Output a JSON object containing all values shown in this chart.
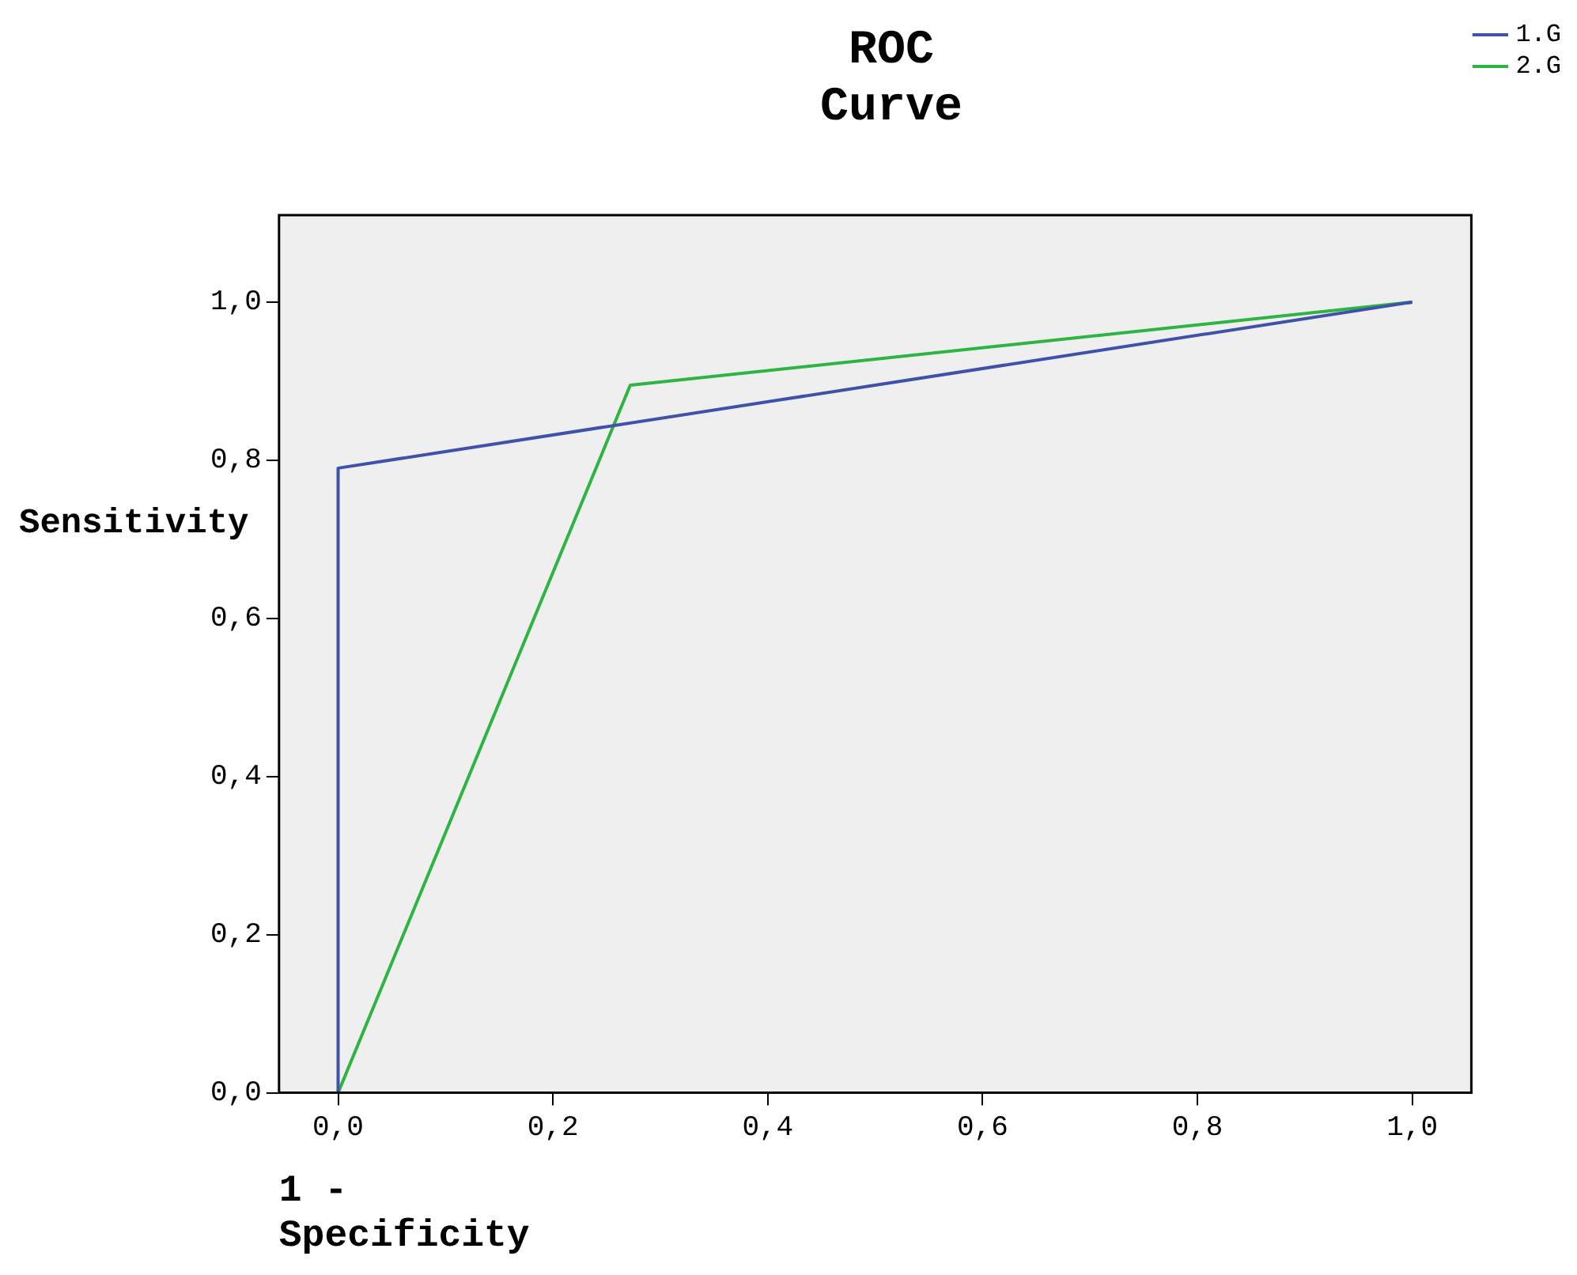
{
  "chart_data": {
    "type": "line",
    "title": "ROC Curve",
    "xlabel": "1 - Specificity",
    "ylabel": "Sensitivity",
    "series": [
      {
        "name": "1.G",
        "color": "#3f51a8",
        "x": [
          0,
          0,
          1
        ],
        "values": [
          0,
          0.79,
          1
        ]
      },
      {
        "name": "2.G",
        "color": "#2db442",
        "x": [
          0,
          0.272,
          1
        ],
        "values": [
          0,
          0.895,
          1
        ]
      }
    ],
    "xlim": [
      -0.055,
      1.055
    ],
    "ylim": [
      0,
      1.11
    ],
    "xticks": [
      {
        "value": 0,
        "label": "0,0"
      },
      {
        "value": 0.2,
        "label": "0,2"
      },
      {
        "value": 0.4,
        "label": "0,4"
      },
      {
        "value": 0.6,
        "label": "0,6"
      },
      {
        "value": 0.8,
        "label": "0,8"
      },
      {
        "value": 1,
        "label": "1,0"
      }
    ],
    "yticks": [
      {
        "value": 0,
        "label": "0,0"
      },
      {
        "value": 0.2,
        "label": "0,2"
      },
      {
        "value": 0.4,
        "label": "0,4"
      },
      {
        "value": 0.6,
        "label": "0,6"
      },
      {
        "value": 0.8,
        "label": "0,8"
      },
      {
        "value": 1,
        "label": "1,0"
      }
    ],
    "grid": false,
    "legend": "top right",
    "marker": "none",
    "line_style": "solid"
  }
}
